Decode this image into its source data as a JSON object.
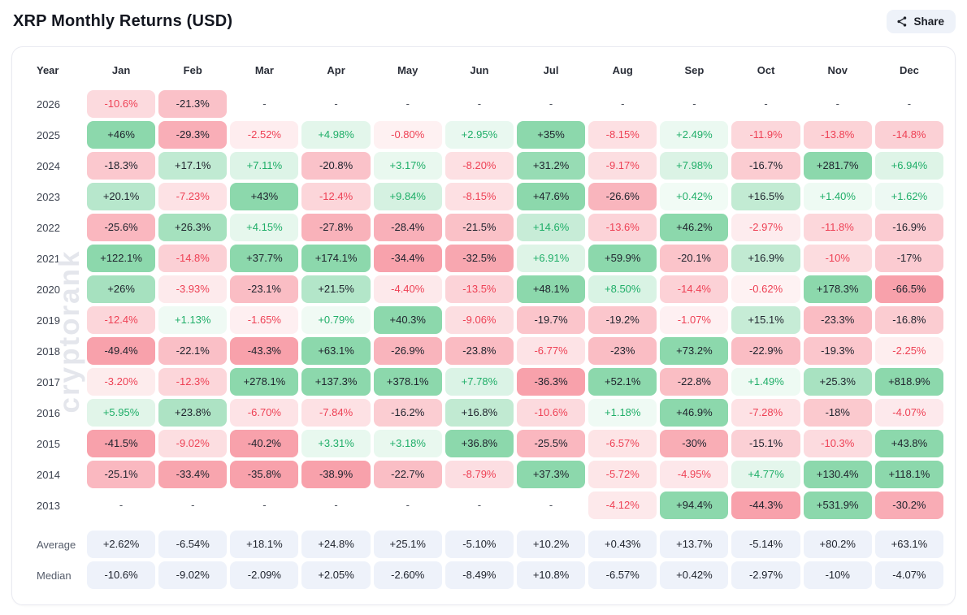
{
  "header": {
    "title": "XRP Monthly Returns (USD)",
    "share_label": "Share"
  },
  "watermark": "cryptorank",
  "colors": {
    "positive_strong_bg": "#8cd8ac",
    "positive_light_bg": "#f2fbf6",
    "negative_strong_bg": "#f8a1ab",
    "negative_light_bg": "#fef3f4",
    "positive_text": "#1fae68",
    "negative_text": "#ee4155",
    "dark_text": "#20242e",
    "summary_bg": "#eef2fa",
    "share_button_bg": "#eef2f9"
  },
  "chart_data": {
    "type": "heatmap",
    "title": "XRP Monthly Returns (USD)",
    "columns": [
      "Year",
      "Jan",
      "Feb",
      "Mar",
      "Apr",
      "May",
      "Jun",
      "Jul",
      "Aug",
      "Sep",
      "Oct",
      "Nov",
      "Dec"
    ],
    "rows": [
      {
        "year": "2026",
        "values": [
          "-10.6%",
          "-21.3%",
          "-",
          "-",
          "-",
          "-",
          "-",
          "-",
          "-",
          "-",
          "-",
          "-"
        ]
      },
      {
        "year": "2025",
        "values": [
          "+46%",
          "-29.3%",
          "-2.52%",
          "+4.98%",
          "-0.80%",
          "+2.95%",
          "+35%",
          "-8.15%",
          "+2.49%",
          "-11.9%",
          "-13.8%",
          "-14.8%"
        ]
      },
      {
        "year": "2024",
        "values": [
          "-18.3%",
          "+17.1%",
          "+7.11%",
          "-20.8%",
          "+3.17%",
          "-8.20%",
          "+31.2%",
          "-9.17%",
          "+7.98%",
          "-16.7%",
          "+281.7%",
          "+6.94%"
        ]
      },
      {
        "year": "2023",
        "values": [
          "+20.1%",
          "-7.23%",
          "+43%",
          "-12.4%",
          "+9.84%",
          "-8.15%",
          "+47.6%",
          "-26.6%",
          "+0.42%",
          "+16.5%",
          "+1.40%",
          "+1.62%"
        ]
      },
      {
        "year": "2022",
        "values": [
          "-25.6%",
          "+26.3%",
          "+4.15%",
          "-27.8%",
          "-28.4%",
          "-21.5%",
          "+14.6%",
          "-13.6%",
          "+46.2%",
          "-2.97%",
          "-11.8%",
          "-16.9%"
        ]
      },
      {
        "year": "2021",
        "values": [
          "+122.1%",
          "-14.8%",
          "+37.7%",
          "+174.1%",
          "-34.4%",
          "-32.5%",
          "+6.91%",
          "+59.9%",
          "-20.1%",
          "+16.9%",
          "-10%",
          "-17%"
        ]
      },
      {
        "year": "2020",
        "values": [
          "+26%",
          "-3.93%",
          "-23.1%",
          "+21.5%",
          "-4.40%",
          "-13.5%",
          "+48.1%",
          "+8.50%",
          "-14.4%",
          "-0.62%",
          "+178.3%",
          "-66.5%"
        ]
      },
      {
        "year": "2019",
        "values": [
          "-12.4%",
          "+1.13%",
          "-1.65%",
          "+0.79%",
          "+40.3%",
          "-9.06%",
          "-19.7%",
          "-19.2%",
          "-1.07%",
          "+15.1%",
          "-23.3%",
          "-16.8%"
        ]
      },
      {
        "year": "2018",
        "values": [
          "-49.4%",
          "-22.1%",
          "-43.3%",
          "+63.1%",
          "-26.9%",
          "-23.8%",
          "-6.77%",
          "-23%",
          "+73.2%",
          "-22.9%",
          "-19.3%",
          "-2.25%"
        ]
      },
      {
        "year": "2017",
        "values": [
          "-3.20%",
          "-12.3%",
          "+278.1%",
          "+137.3%",
          "+378.1%",
          "+7.78%",
          "-36.3%",
          "+52.1%",
          "-22.8%",
          "+1.49%",
          "+25.3%",
          "+818.9%"
        ]
      },
      {
        "year": "2016",
        "values": [
          "+5.95%",
          "+23.8%",
          "-6.70%",
          "-7.84%",
          "-16.2%",
          "+16.8%",
          "-10.6%",
          "+1.18%",
          "+46.9%",
          "-7.28%",
          "-18%",
          "-4.07%"
        ]
      },
      {
        "year": "2015",
        "values": [
          "-41.5%",
          "-9.02%",
          "-40.2%",
          "+3.31%",
          "+3.18%",
          "+36.8%",
          "-25.5%",
          "-6.57%",
          "-30%",
          "-15.1%",
          "-10.3%",
          "+43.8%"
        ]
      },
      {
        "year": "2014",
        "values": [
          "-25.1%",
          "-33.4%",
          "-35.8%",
          "-38.9%",
          "-22.7%",
          "-8.79%",
          "+37.3%",
          "-5.72%",
          "-4.95%",
          "+4.77%",
          "+130.4%",
          "+118.1%"
        ]
      },
      {
        "year": "2013",
        "values": [
          "-",
          "-",
          "-",
          "-",
          "-",
          "-",
          "-",
          "-4.12%",
          "+94.4%",
          "-44.3%",
          "+531.9%",
          "-30.2%"
        ]
      }
    ],
    "summary": [
      {
        "label": "Average",
        "values": [
          "+2.62%",
          "-6.54%",
          "+18.1%",
          "+24.8%",
          "+25.1%",
          "-5.10%",
          "+10.2%",
          "+0.43%",
          "+13.7%",
          "-5.14%",
          "+80.2%",
          "+63.1%"
        ]
      },
      {
        "label": "Median",
        "values": [
          "-10.6%",
          "-9.02%",
          "-2.09%",
          "+2.05%",
          "-2.60%",
          "-8.49%",
          "+10.8%",
          "-6.57%",
          "+0.42%",
          "-2.97%",
          "-10%",
          "-4.07%"
        ]
      }
    ]
  }
}
